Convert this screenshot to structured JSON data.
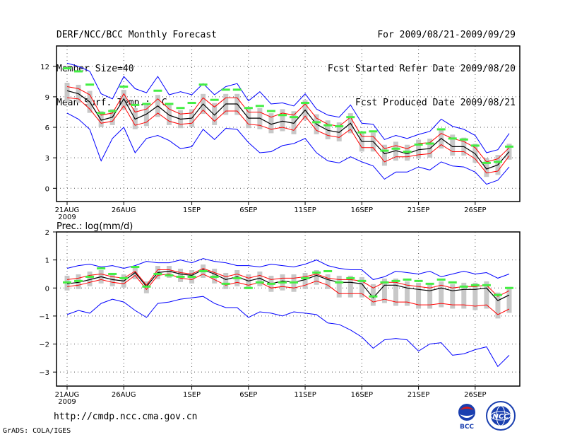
{
  "header": {
    "title": "DERF/NCC/BCC Monthly Forecast",
    "member_size": "Member Size=40",
    "variable": "Mean Surf. Temp.: °C",
    "period": "For 2009/08/21-2009/09/29",
    "start_date": "Fcst Started Refer Date 2009/08/20",
    "produced_date": "Fcst Produced Date 2009/08/21"
  },
  "footer": {
    "url": "http://cmdp.ncc.cma.gov.cn",
    "grads": "GrADS: COLA/IGES",
    "logo_bcc_text": "BCC",
    "logo_ncc_text": "NCC"
  },
  "colors": {
    "mean": "#000000",
    "max_min": "#0000ff",
    "spread": "#ff0000",
    "box": "#c8c8c8",
    "marker": "#44ee44"
  },
  "chart_data": [
    {
      "type": "line",
      "title": "Mean Surf. Temp.: °C",
      "x_ticks": [
        "21AUG",
        "26AUG",
        "1SEP",
        "6SEP",
        "11SEP",
        "16SEP",
        "21SEP",
        "26SEP"
      ],
      "x_tick_days": [
        0,
        5,
        11,
        16,
        21,
        26,
        31,
        36
      ],
      "year_label": "2009",
      "days": 40,
      "ylim": [
        -1.3,
        14
      ],
      "yticks": [
        0,
        3,
        6,
        9,
        12
      ],
      "ytick_labels": [
        "0",
        "3",
        "6",
        "9",
        "12"
      ],
      "series": [
        {
          "name": "max",
          "values": [
            12.3,
            12.0,
            11.5,
            9.3,
            8.8,
            11.0,
            9.8,
            9.4,
            11.0,
            9.2,
            9.5,
            9.2,
            10.3,
            9.2,
            10.0,
            10.3,
            8.6,
            9.5,
            8.3,
            8.4,
            8.1,
            9.3,
            7.8,
            7.2,
            7.0,
            8.2,
            6.4,
            6.3,
            4.8,
            5.2,
            4.9,
            5.3,
            5.6,
            6.8,
            6.1,
            5.8,
            5.2,
            3.5,
            3.8,
            5.4
          ]
        },
        {
          "name": "spread_upper",
          "values": [
            10.0,
            9.8,
            9.2,
            7.2,
            7.4,
            9.3,
            7.5,
            7.8,
            8.8,
            7.8,
            7.3,
            7.4,
            8.9,
            8.0,
            8.9,
            8.9,
            7.5,
            7.5,
            7.0,
            7.4,
            7.2,
            8.3,
            6.9,
            6.3,
            6.1,
            7.0,
            5.1,
            5.1,
            3.9,
            4.2,
            3.9,
            4.4,
            4.5,
            5.4,
            4.9,
            4.6,
            4.0,
            2.6,
            2.9,
            4.0
          ]
        },
        {
          "name": "mean",
          "values": [
            9.6,
            9.3,
            8.5,
            6.7,
            7.0,
            8.8,
            6.8,
            7.3,
            8.1,
            7.2,
            6.8,
            6.9,
            8.3,
            7.2,
            8.3,
            8.3,
            6.9,
            6.9,
            6.3,
            6.6,
            6.4,
            7.7,
            6.3,
            5.7,
            5.5,
            6.4,
            4.6,
            4.6,
            3.4,
            3.7,
            3.4,
            3.8,
            3.9,
            4.9,
            4.1,
            4.1,
            3.4,
            1.9,
            2.3,
            3.6
          ]
        },
        {
          "name": "spread_lower",
          "values": [
            8.9,
            8.8,
            7.8,
            6.4,
            6.6,
            8.1,
            6.2,
            6.5,
            7.4,
            6.6,
            6.3,
            6.4,
            7.7,
            6.6,
            7.6,
            7.6,
            6.3,
            6.2,
            5.8,
            6.0,
            5.7,
            7.1,
            5.7,
            5.2,
            5.0,
            5.8,
            4.0,
            4.0,
            2.6,
            3.1,
            3.1,
            3.3,
            3.4,
            4.3,
            3.6,
            3.6,
            2.9,
            1.5,
            1.7,
            3.2
          ]
        },
        {
          "name": "min",
          "values": [
            7.4,
            6.8,
            5.8,
            2.7,
            4.9,
            6.0,
            3.5,
            4.9,
            5.2,
            4.7,
            3.9,
            4.1,
            5.8,
            4.8,
            5.9,
            5.8,
            4.5,
            3.5,
            3.6,
            4.2,
            4.4,
            4.9,
            3.5,
            2.7,
            2.5,
            3.1,
            2.6,
            2.2,
            0.9,
            1.6,
            1.6,
            2.1,
            1.8,
            2.6,
            2.2,
            2.1,
            1.6,
            0.4,
            0.8,
            2.1
          ]
        },
        {
          "name": "control",
          "values": [
            11.8,
            11.5,
            10.2,
            7.4,
            7.6,
            10.0,
            8.2,
            8.3,
            9.6,
            8.3,
            7.9,
            8.4,
            10.2,
            8.7,
            9.7,
            9.7,
            7.9,
            8.1,
            7.6,
            7.2,
            7.0,
            8.4,
            6.5,
            6.2,
            6.1,
            7.0,
            5.5,
            5.6,
            3.7,
            3.9,
            3.6,
            4.3,
            4.4,
            5.8,
            4.9,
            4.8,
            4.2,
            2.5,
            2.6,
            4.1
          ]
        }
      ]
    },
    {
      "type": "line",
      "title": "Prec.: log(mm/d)",
      "x_ticks": [
        "21AUG",
        "26AUG",
        "1SEP",
        "6SEP",
        "11SEP",
        "16SEP",
        "21SEP",
        "26SEP"
      ],
      "x_tick_days": [
        0,
        5,
        11,
        16,
        21,
        26,
        31,
        36
      ],
      "year_label": "2009",
      "days": 40,
      "ylim": [
        -3.5,
        2
      ],
      "yticks": [
        -3,
        -2,
        -1,
        0,
        1,
        2
      ],
      "ytick_labels": [
        "−3",
        "−2",
        "−1",
        "0",
        "1",
        "2"
      ],
      "series": [
        {
          "name": "max",
          "values": [
            0.7,
            0.8,
            0.85,
            0.75,
            0.8,
            0.7,
            0.8,
            0.95,
            0.9,
            0.9,
            1.0,
            0.9,
            1.05,
            0.95,
            0.9,
            0.8,
            0.8,
            0.75,
            0.85,
            0.8,
            0.75,
            0.85,
            1.0,
            0.8,
            0.7,
            0.65,
            0.65,
            0.3,
            0.4,
            0.6,
            0.55,
            0.5,
            0.6,
            0.4,
            0.5,
            0.6,
            0.5,
            0.55,
            0.35,
            0.5
          ]
        },
        {
          "name": "spread_upper",
          "values": [
            0.3,
            0.35,
            0.45,
            0.5,
            0.4,
            0.35,
            0.6,
            0.1,
            0.65,
            0.65,
            0.55,
            0.5,
            0.7,
            0.55,
            0.4,
            0.5,
            0.35,
            0.45,
            0.3,
            0.35,
            0.35,
            0.4,
            0.5,
            0.35,
            0.3,
            0.3,
            0.25,
            0.0,
            0.2,
            0.2,
            0.1,
            0.05,
            0.0,
            0.1,
            0.0,
            0.05,
            0.05,
            0.1,
            -0.3,
            -0.1
          ]
        },
        {
          "name": "mean",
          "values": [
            0.15,
            0.2,
            0.3,
            0.4,
            0.3,
            0.25,
            0.55,
            0.05,
            0.55,
            0.6,
            0.5,
            0.45,
            0.65,
            0.5,
            0.3,
            0.4,
            0.25,
            0.35,
            0.15,
            0.25,
            0.2,
            0.3,
            0.45,
            0.3,
            0.2,
            0.2,
            0.15,
            -0.35,
            0.1,
            0.1,
            0.0,
            -0.05,
            -0.1,
            0.0,
            -0.1,
            -0.05,
            -0.05,
            0.0,
            -0.45,
            -0.25
          ]
        },
        {
          "name": "spread_lower",
          "values": [
            0.05,
            0.1,
            0.2,
            0.3,
            0.2,
            0.15,
            0.45,
            -0.05,
            0.45,
            0.5,
            0.35,
            0.3,
            0.5,
            0.3,
            0.1,
            0.2,
            0.1,
            0.2,
            0.0,
            0.05,
            0.0,
            0.1,
            0.25,
            0.1,
            -0.2,
            -0.2,
            -0.2,
            -0.5,
            -0.4,
            -0.5,
            -0.5,
            -0.6,
            -0.6,
            -0.55,
            -0.6,
            -0.6,
            -0.65,
            -0.6,
            -0.95,
            -0.75
          ]
        },
        {
          "name": "min",
          "values": [
            -0.95,
            -0.8,
            -0.9,
            -0.55,
            -0.4,
            -0.5,
            -0.8,
            -1.05,
            -0.55,
            -0.5,
            -0.4,
            -0.35,
            -0.3,
            -0.55,
            -0.7,
            -0.7,
            -1.05,
            -0.85,
            -0.9,
            -1.0,
            -0.85,
            -0.9,
            -0.95,
            -1.25,
            -1.3,
            -1.5,
            -1.75,
            -2.15,
            -1.85,
            -1.8,
            -1.85,
            -2.25,
            -2.0,
            -1.95,
            -2.4,
            -2.35,
            -2.2,
            -2.1,
            -2.8,
            -2.4
          ]
        },
        {
          "name": "control",
          "values": [
            0.2,
            0.25,
            0.4,
            0.7,
            0.5,
            0.35,
            0.75,
            0.05,
            0.5,
            0.45,
            0.4,
            0.4,
            0.6,
            0.4,
            0.15,
            0.35,
            0.0,
            0.2,
            0.15,
            0.2,
            0.2,
            0.35,
            0.55,
            0.6,
            0.2,
            0.35,
            0.25,
            -0.3,
            0.2,
            0.25,
            0.3,
            0.25,
            0.15,
            0.3,
            0.2,
            0.05,
            0.1,
            0.1,
            -0.25,
            0.0
          ]
        }
      ]
    }
  ]
}
